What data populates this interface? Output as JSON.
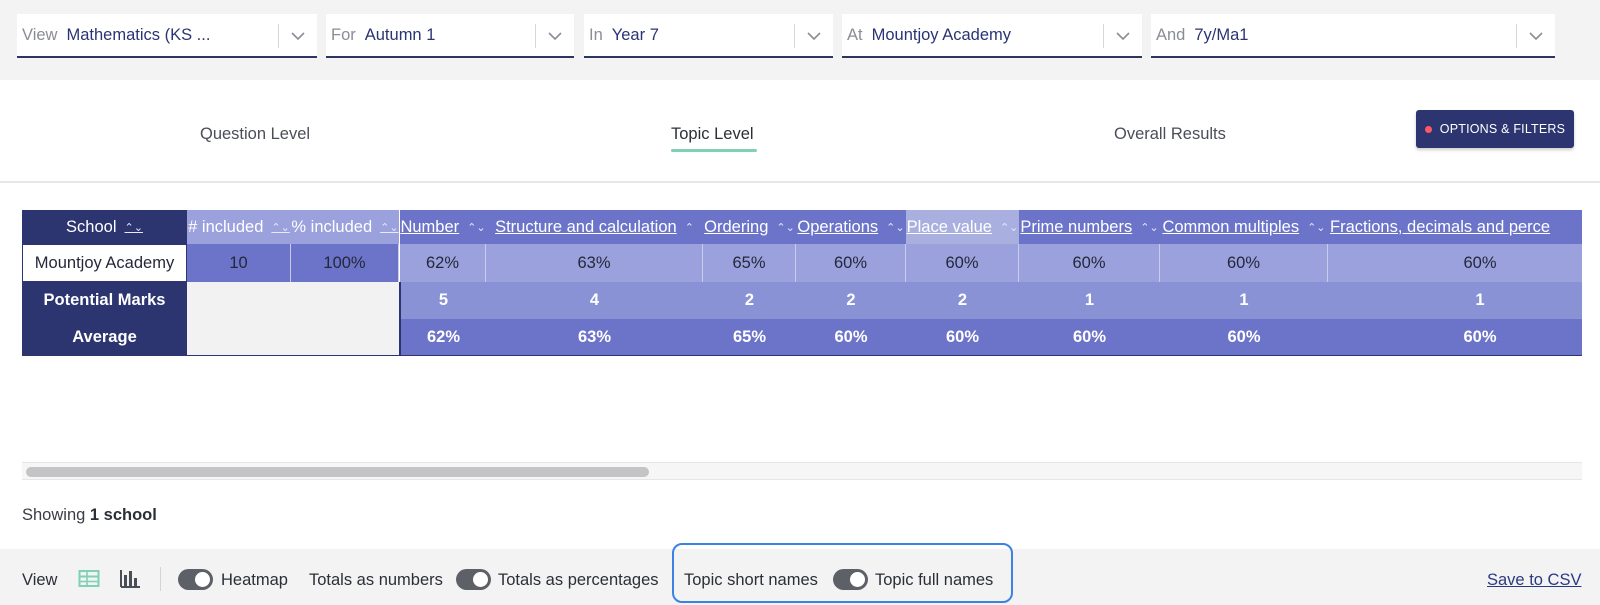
{
  "filters": [
    {
      "label": "View",
      "value": "Mathematics (KS ..."
    },
    {
      "label": "For",
      "value": "Autumn 1"
    },
    {
      "label": "In",
      "value": "Year 7"
    },
    {
      "label": "At",
      "value": "Mountjoy Academy"
    },
    {
      "label": "And",
      "value": "7y/Ma1"
    }
  ],
  "tabs": {
    "question_level": "Question Level",
    "topic_level": "Topic Level",
    "overall_results": "Overall Results",
    "active": "Topic Level"
  },
  "options_button": "OPTIONS & FILTERS",
  "table": {
    "headers": {
      "school": "School",
      "included_count": "# included",
      "included_pct": "% included",
      "topics": [
        "Number",
        "Structure and calculation",
        "Ordering",
        "Operations",
        "Place value",
        "Prime numbers",
        "Common multiples",
        "Fractions, decimals and perce"
      ]
    },
    "sort_glyph": "⌃⌄",
    "sort_up_glyph": "⌃",
    "rows": [
      {
        "school": "Mountjoy Academy",
        "included_count": "10",
        "included_pct": "100%",
        "values": [
          "62%",
          "63%",
          "65%",
          "60%",
          "60%",
          "60%",
          "60%",
          "60%"
        ]
      }
    ],
    "potential_marks": {
      "label": "Potential Marks",
      "values": [
        "5",
        "4",
        "2",
        "2",
        "2",
        "1",
        "1",
        "1"
      ]
    },
    "average": {
      "label": "Average",
      "values": [
        "62%",
        "63%",
        "65%",
        "60%",
        "60%",
        "60%",
        "60%",
        "60%"
      ]
    }
  },
  "showing": {
    "prefix": "Showing",
    "count": "1 school"
  },
  "footer": {
    "view_label": "View",
    "heatmap": "Heatmap",
    "totals_numbers": "Totals as numbers",
    "totals_percentages": "Totals as percentages",
    "topic_short": "Topic short names",
    "topic_full": "Topic full names",
    "save_csv": "Save to CSV"
  },
  "colors": {
    "header_dark": "#2c3570",
    "header_mid": "#6b74c9",
    "header_light": "#a9b0e0",
    "accent_green": "#7fd1b5",
    "highlight_blue": "#3b82e6"
  }
}
